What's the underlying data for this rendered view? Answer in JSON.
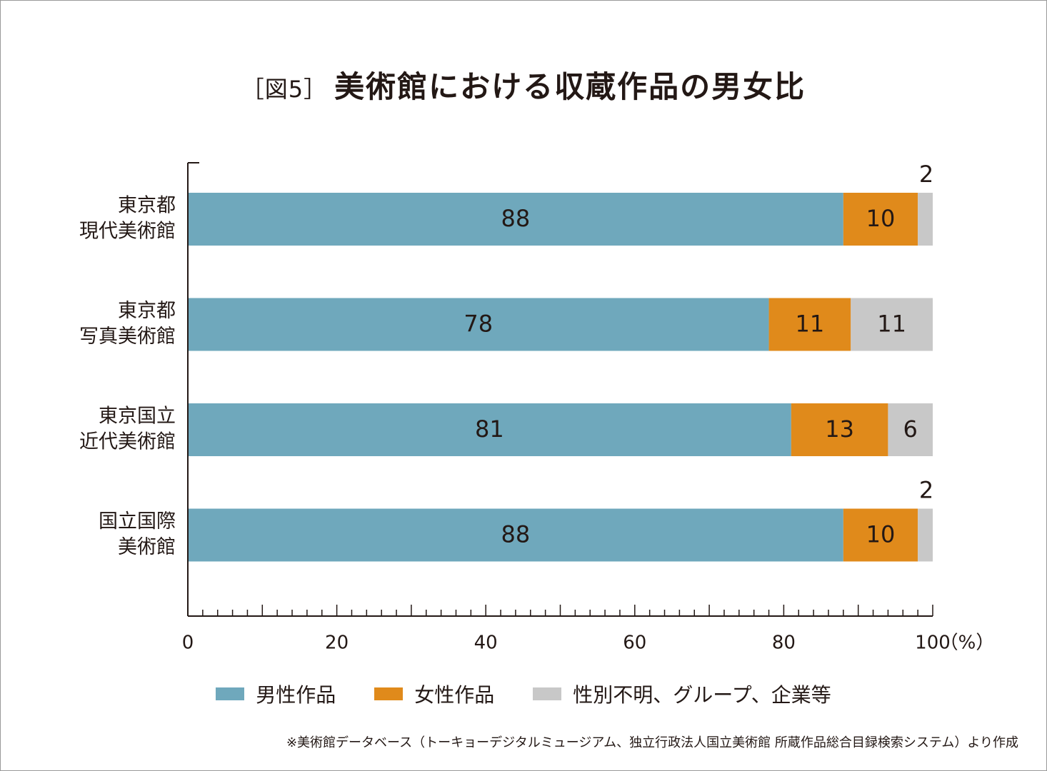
{
  "title": {
    "figure_label": "［図5］",
    "text": "美術館における収蔵作品の男女比"
  },
  "chart_data": {
    "type": "bar",
    "orientation": "horizontal",
    "stacked": true,
    "categories": [
      [
        "東京都",
        "現代美術館"
      ],
      [
        "東京都",
        "写真美術館"
      ],
      [
        "東京国立",
        "近代美術館"
      ],
      [
        "国立国際",
        "美術館"
      ]
    ],
    "series": [
      {
        "name": "男性作品",
        "color": "#6fa8bc",
        "values": [
          88,
          78,
          81,
          88
        ]
      },
      {
        "name": "女性作品",
        "color": "#e08a1b",
        "values": [
          10,
          11,
          13,
          10
        ]
      },
      {
        "name": "性別不明、グループ、企業等",
        "color": "#c8c8c8",
        "values": [
          2,
          11,
          6,
          2
        ]
      }
    ],
    "xlim": [
      0,
      100
    ],
    "x_ticks": [
      "0",
      "20",
      "40",
      "60",
      "80",
      "100"
    ],
    "x_unit": "（%）",
    "legend_position": "bottom",
    "grid": false
  },
  "source_note": "※美術館データベース（トーキョーデジタルミュージアム、独立行政法人国立美術館 所蔵作品総合目録検索システム）より作成"
}
